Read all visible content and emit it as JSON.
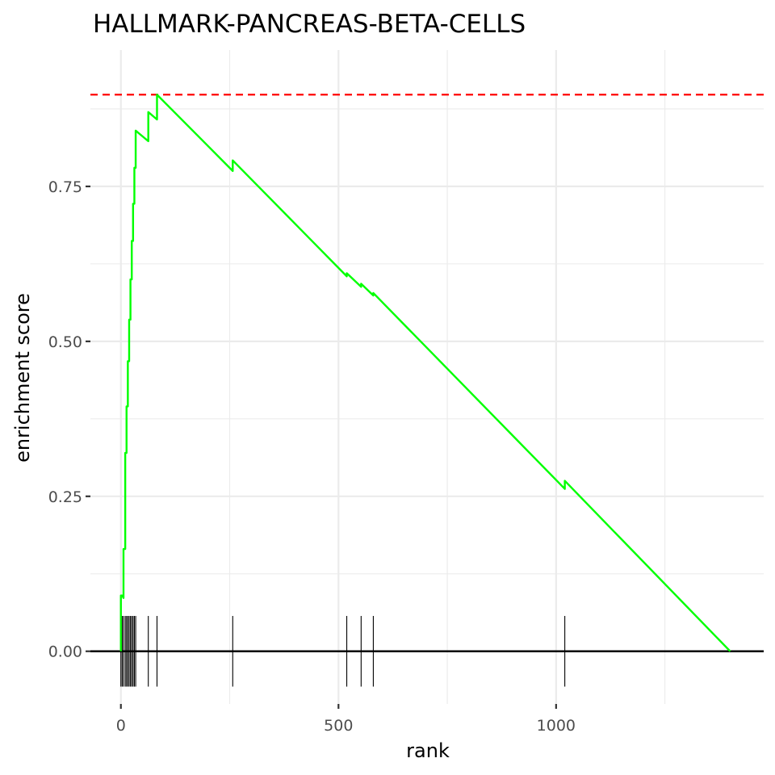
{
  "chart_data": {
    "type": "line",
    "title": "HALLMARK-PANCREAS-BETA-CELLS",
    "xlabel": "rank",
    "ylabel": "enrichment score",
    "xlim": [
      -70,
      1477
    ],
    "ylim": [
      -0.085,
      0.97
    ],
    "x_ticks": [
      {
        "value": 0,
        "label": "0"
      },
      {
        "value": 500,
        "label": "500"
      },
      {
        "value": 1000,
        "label": "1000"
      }
    ],
    "y_ticks": [
      {
        "value": 0.0,
        "label": "0.00"
      },
      {
        "value": 0.25,
        "label": "0.25"
      },
      {
        "value": 0.5,
        "label": "0.50"
      },
      {
        "value": 0.75,
        "label": "0.75"
      }
    ],
    "grid": true,
    "max_score": 0.898,
    "series": [
      {
        "color": "#00ff00",
        "points": [
          [
            0,
            0.0
          ],
          [
            0,
            0.09
          ],
          [
            3,
            0.09
          ],
          [
            6,
            0.086
          ],
          [
            6,
            0.165
          ],
          [
            10,
            0.165
          ],
          [
            10,
            0.32
          ],
          [
            13,
            0.32
          ],
          [
            13,
            0.395
          ],
          [
            16,
            0.395
          ],
          [
            16,
            0.468
          ],
          [
            19,
            0.468
          ],
          [
            19,
            0.535
          ],
          [
            22,
            0.535
          ],
          [
            22,
            0.6
          ],
          [
            25,
            0.6
          ],
          [
            25,
            0.662
          ],
          [
            28,
            0.662
          ],
          [
            28,
            0.722
          ],
          [
            31,
            0.722
          ],
          [
            31,
            0.78
          ],
          [
            34,
            0.78
          ],
          [
            34,
            0.84
          ],
          [
            63,
            0.823
          ],
          [
            63,
            0.87
          ],
          [
            83,
            0.858
          ],
          [
            83,
            0.898
          ],
          [
            257,
            0.775
          ],
          [
            257,
            0.792
          ],
          [
            519,
            0.605
          ],
          [
            519,
            0.61
          ],
          [
            552,
            0.588
          ],
          [
            552,
            0.593
          ],
          [
            580,
            0.574
          ],
          [
            580,
            0.578
          ],
          [
            1020,
            0.262
          ],
          [
            1020,
            0.275
          ],
          [
            1400,
            0.0
          ]
        ]
      }
    ],
    "hits": [
      0,
      3,
      6,
      10,
      13,
      16,
      19,
      22,
      25,
      28,
      31,
      34,
      63,
      83,
      257,
      519,
      552,
      580,
      1020
    ],
    "colors": {
      "line": "#00ff00",
      "max_line": "#ff0000",
      "zero_line": "#000000",
      "hit_marks": "#000000",
      "grid": "#ebebeb"
    }
  }
}
